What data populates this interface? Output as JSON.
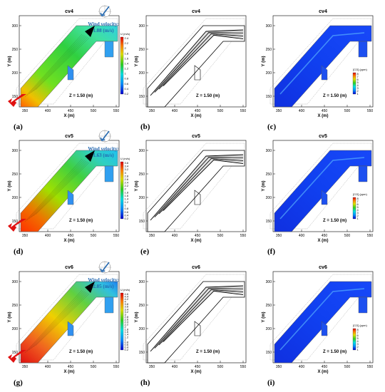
{
  "figure": {
    "panels": [
      {
        "id": "a",
        "title": "cv4",
        "type": "velocity",
        "caption": "(a)",
        "wind_label": "Wind velocity:",
        "wind_value": "1.08 (m/s)",
        "z_label": "Z = 1.50 (m)",
        "cbar_title": "U (m/s)",
        "cbar_labels": [
          "2.4",
          "2.2",
          "2",
          "1.8",
          "1.6",
          "1.4",
          "1.2",
          "1",
          "0.8",
          "0.6",
          "0.4",
          "0.2"
        ],
        "xticks": [
          "350",
          "400",
          "450",
          "500",
          "550"
        ],
        "yticks": [
          "300",
          "250",
          "200",
          "150"
        ],
        "xlabel": "X (m)",
        "ylabel": "Y (m)"
      },
      {
        "id": "b",
        "title": "cv4",
        "type": "streamline",
        "caption": "(b)",
        "z_label": "Z = 1.50 (m)",
        "xticks": [
          "350",
          "400",
          "450",
          "500",
          "550"
        ],
        "yticks": [
          "300",
          "250",
          "200",
          "150"
        ],
        "xlabel": "X (m)",
        "ylabel": "Y (m)"
      },
      {
        "id": "c",
        "title": "cv4",
        "type": "co",
        "caption": "(c)",
        "z_label": "Z = 1.50 (m)",
        "cbar_title": "[CO] (ppm)",
        "cbar_labels": [
          "8",
          "7",
          "6",
          "5",
          "4",
          "3",
          "2",
          "1"
        ],
        "xticks": [
          "350",
          "400",
          "450",
          "500",
          "550"
        ],
        "yticks": [
          "300",
          "250",
          "200",
          "150"
        ],
        "xlabel": "X (m)",
        "ylabel": "Y (m)"
      },
      {
        "id": "d",
        "title": "cv5",
        "type": "velocity",
        "caption": "(d)",
        "wind_label": "Wind velocity:",
        "wind_value": "1.63 (m/s)",
        "z_label": "Z = 1.50 (m)",
        "cbar_title": "U (m/s)",
        "cbar_labels": [
          "3.6",
          "3.4",
          "3.2",
          "3",
          "2.8",
          "2.6",
          "2.4",
          "2.2",
          "2",
          "1.8",
          "1.6",
          "1.4",
          "1.2",
          "1",
          "0.8",
          "0.6",
          "0.4",
          "0.2"
        ],
        "xticks": [
          "350",
          "400",
          "450",
          "500",
          "550"
        ],
        "yticks": [
          "300",
          "250",
          "200",
          "150"
        ],
        "xlabel": "X (m)",
        "ylabel": "Y (m)"
      },
      {
        "id": "e",
        "title": "cv5",
        "type": "streamline",
        "caption": "(e)",
        "z_label": "",
        "xticks": [
          "350",
          "400",
          "450",
          "500",
          "550"
        ],
        "yticks": [
          "300",
          "250",
          "200",
          "150"
        ],
        "xlabel": "X (m)",
        "ylabel": "Y (m)"
      },
      {
        "id": "f",
        "title": "cv5",
        "type": "co",
        "caption": "(f)",
        "z_label": "Z = 1.50 (m)",
        "cbar_title": "[CO] (ppm)",
        "cbar_labels": [
          "8",
          "7",
          "6",
          "5",
          "4",
          "3",
          "2",
          "1"
        ],
        "xticks": [
          "350",
          "400",
          "450",
          "500",
          "550"
        ],
        "yticks": [
          "300",
          "250",
          "200",
          "150"
        ],
        "xlabel": "X (m)",
        "ylabel": "Y (m)"
      },
      {
        "id": "g",
        "title": "cv6",
        "type": "velocity",
        "caption": "(g)",
        "wind_label": "Wind velocity:",
        "wind_value": "2.05 (m/s)",
        "z_label": "Z = 1.50 (m)",
        "cbar_title": "U (m/s)",
        "cbar_labels": [
          "4.6",
          "4.4",
          "4.2",
          "4",
          "3.8",
          "3.6",
          "3.4",
          "3.2",
          "3",
          "2.8",
          "2.6",
          "2.4",
          "2.2",
          "2",
          "1.8",
          "1.6",
          "1.4",
          "1.2",
          "1",
          "0.8",
          "0.6",
          "0.4",
          "0.2"
        ],
        "xticks": [
          "350",
          "400",
          "450",
          "500",
          "550"
        ],
        "yticks": [
          "300",
          "250",
          "200",
          "150"
        ],
        "xlabel": "X (m)",
        "ylabel": "Y (m)"
      },
      {
        "id": "h",
        "title": "cv6",
        "type": "streamline",
        "caption": "(h)",
        "z_label": "Z = 1.50 (m)",
        "xticks": [
          "350",
          "400",
          "450",
          "500",
          "550"
        ],
        "yticks": [
          "300",
          "250",
          "200",
          "150"
        ],
        "xlabel": "X (m)",
        "ylabel": "Y (m)"
      },
      {
        "id": "i",
        "title": "cv6",
        "type": "co",
        "caption": "(i)",
        "z_label": "Z = 1.50 (m)",
        "cbar_title": "[CO] (ppm)",
        "cbar_labels": [
          "8",
          "7",
          "6",
          "5",
          "4",
          "3",
          "2",
          "1"
        ],
        "xticks": [
          "350",
          "400",
          "450",
          "500",
          "550"
        ],
        "yticks": [
          "300",
          "250",
          "200",
          "150"
        ],
        "xlabel": "X (m)",
        "ylabel": "Y (m)"
      }
    ]
  },
  "chart_data": [
    {
      "type": "heatmap",
      "title": "cv4",
      "xlabel": "X (m)",
      "ylabel": "Y (m)",
      "xlim": [
        340,
        560
      ],
      "ylim": [
        140,
        340
      ],
      "colorbar": "U (m/s)",
      "range": [
        0.2,
        2.4
      ]
    },
    {
      "type": "heatmap",
      "title": "cv4",
      "xlabel": "X (m)",
      "ylabel": "Y (m)",
      "xlim": [
        340,
        560
      ],
      "ylim": [
        140,
        340
      ]
    },
    {
      "type": "heatmap",
      "title": "cv4",
      "xlabel": "X (m)",
      "ylabel": "Y (m)",
      "xlim": [
        340,
        560
      ],
      "ylim": [
        140,
        340
      ],
      "colorbar": "[CO] (ppm)",
      "range": [
        1,
        8
      ]
    },
    {
      "type": "heatmap",
      "title": "cv5",
      "xlabel": "X (m)",
      "ylabel": "Y (m)",
      "xlim": [
        340,
        560
      ],
      "ylim": [
        140,
        340
      ],
      "colorbar": "U (m/s)",
      "range": [
        0.2,
        3.6
      ]
    },
    {
      "type": "heatmap",
      "title": "cv5",
      "xlabel": "X (m)",
      "ylabel": "Y (m)",
      "xlim": [
        340,
        560
      ],
      "ylim": [
        140,
        340
      ]
    },
    {
      "type": "heatmap",
      "title": "cv5",
      "xlabel": "X (m)",
      "ylabel": "Y (m)",
      "xlim": [
        340,
        560
      ],
      "ylim": [
        140,
        340
      ],
      "colorbar": "[CO] (ppm)",
      "range": [
        1,
        8
      ]
    },
    {
      "type": "heatmap",
      "title": "cv6",
      "xlabel": "X (m)",
      "ylabel": "Y (m)",
      "xlim": [
        340,
        560
      ],
      "ylim": [
        140,
        340
      ],
      "colorbar": "U (m/s)",
      "range": [
        0.2,
        4.6
      ]
    },
    {
      "type": "heatmap",
      "title": "cv6",
      "xlabel": "X (m)",
      "ylabel": "Y (m)",
      "xlim": [
        340,
        560
      ],
      "ylim": [
        140,
        340
      ]
    },
    {
      "type": "heatmap",
      "title": "cv6",
      "xlabel": "X (m)",
      "ylabel": "Y (m)",
      "xlim": [
        340,
        560
      ],
      "ylim": [
        140,
        340
      ],
      "colorbar": "[CO] (ppm)",
      "range": [
        1,
        8
      ]
    }
  ]
}
